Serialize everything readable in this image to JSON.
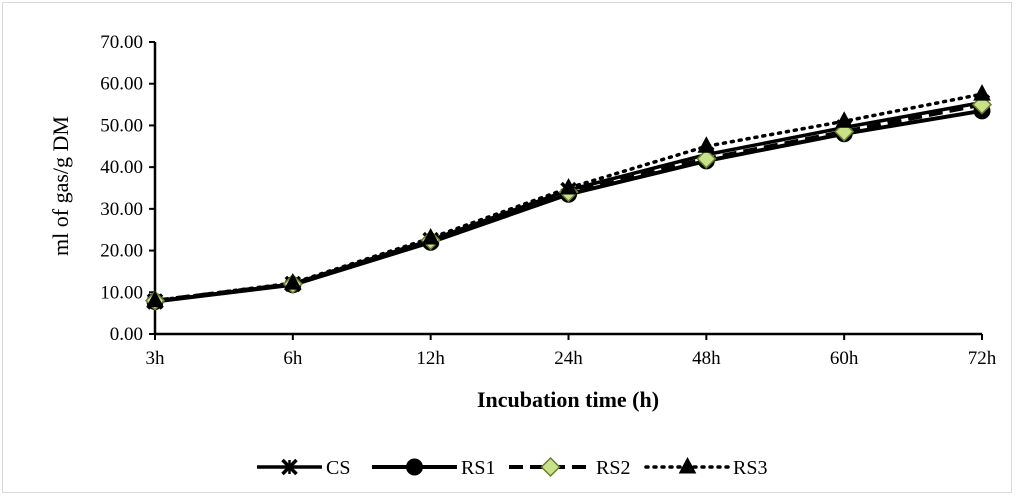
{
  "chart_data": {
    "type": "line",
    "xlabel": "Incubation time (h)",
    "ylabel": "ml of gas/g DM",
    "categories": [
      "3h",
      "6h",
      "12h",
      "24h",
      "48h",
      "60h",
      "72h"
    ],
    "ylim": [
      0,
      70
    ],
    "yticks": [
      "0.00",
      "10.00",
      "20.00",
      "30.00",
      "40.00",
      "50.00",
      "60.00",
      "70.00"
    ],
    "grid": false,
    "legend_position": "bottom",
    "series": [
      {
        "name": "CS",
        "values": [
          7.8,
          12.0,
          22.5,
          34.5,
          43.0,
          49.5,
          55.5
        ],
        "line": "solid",
        "marker": "x-cross",
        "color": "#000000",
        "marker_fill": "#000000"
      },
      {
        "name": "RS1",
        "values": [
          7.8,
          11.8,
          22.0,
          33.5,
          41.5,
          48.0,
          53.5
        ],
        "line": "solid",
        "marker": "circle",
        "color": "#000000",
        "marker_fill": "#000000"
      },
      {
        "name": "RS2",
        "values": [
          8.0,
          12.0,
          22.5,
          34.0,
          42.0,
          48.5,
          55.0
        ],
        "line": "dashed",
        "marker": "diamond",
        "color": "#000000",
        "marker_fill": "#c9e28a"
      },
      {
        "name": "RS3",
        "values": [
          8.0,
          12.2,
          23.0,
          35.0,
          45.0,
          51.0,
          57.5
        ],
        "line": "dotted",
        "marker": "triangle",
        "color": "#000000",
        "marker_fill": "#000000"
      }
    ]
  }
}
